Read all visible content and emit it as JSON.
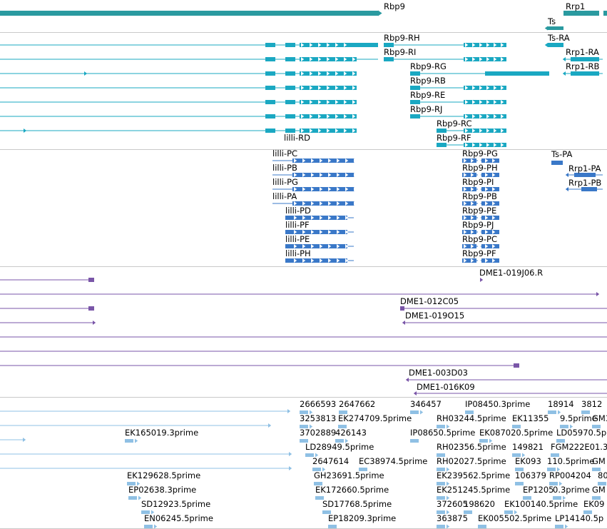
{
  "colors": {
    "gene": "#2a9aa0",
    "transcript": "#1aa8c2",
    "cds": "#3a78c8",
    "clone": "#7a56a8",
    "est": "#8fc0e4",
    "divider": "#c9c9c9"
  },
  "tracks": [
    {
      "id": "genes",
      "features": [
        {
          "label": "Rbp9"
        },
        {
          "label": "Rrp1"
        },
        {
          "label": "Ts"
        }
      ]
    },
    {
      "id": "transcripts",
      "features": [
        {
          "label": "Rbp9-RH"
        },
        {
          "label": "Rbp9-RI"
        },
        {
          "label": "Rbp9-RG"
        },
        {
          "label": "Rbp9-RB"
        },
        {
          "label": "Rbp9-RE"
        },
        {
          "label": "Rbp9-RJ"
        },
        {
          "label": "Rbp9-RC"
        },
        {
          "label": "Rbp9-RF"
        },
        {
          "label": "lilli-RD"
        },
        {
          "label": "Ts-RA"
        },
        {
          "label": "Rrp1-RA"
        },
        {
          "label": "Rrp1-RB"
        }
      ]
    },
    {
      "id": "cds",
      "features": [
        {
          "label": "lilli-PC"
        },
        {
          "label": "lilli-PB"
        },
        {
          "label": "lilli-PG"
        },
        {
          "label": "lilli-PA"
        },
        {
          "label": "lilli-PD"
        },
        {
          "label": "lilli-PF"
        },
        {
          "label": "lilli-PE"
        },
        {
          "label": "lilli-PH"
        },
        {
          "label": "Rbp9-PG"
        },
        {
          "label": "Rbp9-PH"
        },
        {
          "label": "Rbp9-PI"
        },
        {
          "label": "Rbp9-PB"
        },
        {
          "label": "Rbp9-PE"
        },
        {
          "label": "Rbp9-PJ"
        },
        {
          "label": "Rbp9-PC"
        },
        {
          "label": "Rbp9-PF"
        },
        {
          "label": "Ts-PA"
        },
        {
          "label": "Rrp1-PA"
        },
        {
          "label": "Rrp1-PB"
        }
      ]
    },
    {
      "id": "clones",
      "features": [
        {
          "label": "DME1-019J06.R"
        },
        {
          "label": "DME1-012C05"
        },
        {
          "label": "DME1-019O15"
        },
        {
          "label": "DME1-003D03"
        },
        {
          "label": "DME1-016K09"
        }
      ]
    },
    {
      "id": "ests",
      "features": [
        {
          "label": "2666593"
        },
        {
          "label": "2647662"
        },
        {
          "label": "346457"
        },
        {
          "label": "IP08450.3prime"
        },
        {
          "label": "18914"
        },
        {
          "label": "3812"
        },
        {
          "label": "3253813"
        },
        {
          "label": "EK274709.5prime"
        },
        {
          "label": "RH03244.5prime"
        },
        {
          "label": "EK11355"
        },
        {
          "label": "9.5prime"
        },
        {
          "label": "GM3"
        },
        {
          "label": "EK165019.3prime"
        },
        {
          "label": "3702889"
        },
        {
          "label": "426143"
        },
        {
          "label": "IP08650.5prime"
        },
        {
          "label": "EK087020.5prime"
        },
        {
          "label": "LD05970.5p"
        },
        {
          "label": "LD28949.5prime"
        },
        {
          "label": "RH02356.5prime"
        },
        {
          "label": "149821"
        },
        {
          "label": "FGM222E01.3"
        },
        {
          "label": "2647614"
        },
        {
          "label": "EC38974.5prime"
        },
        {
          "label": "RH02027.5prime"
        },
        {
          "label": "EK093"
        },
        {
          "label": "110.5prime"
        },
        {
          "label": "GM"
        },
        {
          "label": "EK129628.5prime"
        },
        {
          "label": "GH23691.5prime"
        },
        {
          "label": "EK239562.5prime"
        },
        {
          "label": "106379"
        },
        {
          "label": "RP004204"
        },
        {
          "label": "80"
        },
        {
          "label": "EP02638.3prime"
        },
        {
          "label": "EK172660.5prime"
        },
        {
          "label": "EK251245.5prime"
        },
        {
          "label": "EP1205"
        },
        {
          "label": "0.3prime"
        },
        {
          "label": "GM"
        },
        {
          "label": "SD12923.5prime"
        },
        {
          "label": "SD17768.5prime"
        },
        {
          "label": "372605"
        },
        {
          "label": "198620"
        },
        {
          "label": "EK100140.5prime"
        },
        {
          "label": "EK09"
        },
        {
          "label": "EN06245.5prime"
        },
        {
          "label": "EP18209.3prime"
        },
        {
          "label": "363875"
        },
        {
          "label": "EK005502.5prime"
        },
        {
          "label": "LP14140.5p"
        }
      ]
    }
  ]
}
